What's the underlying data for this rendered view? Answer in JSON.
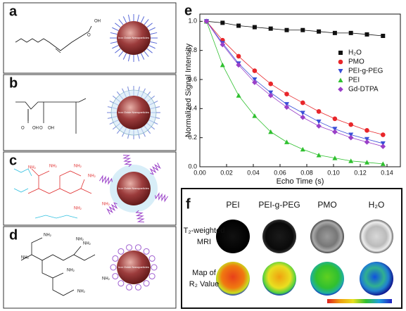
{
  "panels": {
    "a": {
      "label": "a",
      "particle": "Iron Oxide Nanoparticles",
      "atoms": [
        "OH",
        "O"
      ]
    },
    "b": {
      "label": "b",
      "particle": "Iron Oxide Nanoparticles",
      "atoms": [
        "O",
        "OH",
        "O",
        "OH"
      ]
    },
    "c": {
      "label": "c",
      "particle": "Iron Oxide Nanoparticles",
      "atoms": [
        "NH₂",
        "NH₂",
        "NH₂",
        "NH₂",
        "NH₂",
        "NH₂"
      ]
    },
    "d": {
      "label": "d",
      "particle": "Iron Oxide Nanoparticles",
      "atoms": [
        "NH₂",
        "NH₂",
        "NH₂",
        "NH₂",
        "NH₂",
        "NH₂",
        "NH₂"
      ]
    }
  },
  "chart_data": {
    "type": "scatter",
    "label": "e",
    "xlabel": "Echo Time (s)",
    "ylabel": "Normalized Signal Intensity",
    "x": [
      0.005,
      0.017,
      0.029,
      0.041,
      0.053,
      0.065,
      0.077,
      0.089,
      0.101,
      0.113,
      0.125,
      0.137
    ],
    "series": [
      {
        "name": "H₂O",
        "color": "#111111",
        "marker": "square",
        "values": [
          1,
          0.99,
          0.97,
          0.96,
          0.95,
          0.94,
          0.94,
          0.93,
          0.92,
          0.92,
          0.91,
          0.9
        ]
      },
      {
        "name": "PMO",
        "color": "#e8262a",
        "marker": "circle",
        "values": [
          1,
          0.87,
          0.76,
          0.66,
          0.57,
          0.5,
          0.44,
          0.38,
          0.33,
          0.29,
          0.25,
          0.22
        ]
      },
      {
        "name": "PEI-g-PEG",
        "color": "#3a4fd8",
        "marker": "triangle-down",
        "values": [
          1,
          0.85,
          0.71,
          0.6,
          0.51,
          0.43,
          0.37,
          0.31,
          0.26,
          0.22,
          0.19,
          0.16
        ]
      },
      {
        "name": "PEI",
        "color": "#2fc02f",
        "marker": "triangle-up",
        "values": [
          1,
          0.7,
          0.49,
          0.35,
          0.24,
          0.17,
          0.12,
          0.08,
          0.06,
          0.04,
          0.03,
          0.02
        ]
      },
      {
        "name": "Gd-DTPA",
        "color": "#9a3fc8",
        "marker": "diamond",
        "values": [
          1,
          0.84,
          0.7,
          0.58,
          0.49,
          0.41,
          0.34,
          0.28,
          0.24,
          0.2,
          0.17,
          0.14
        ]
      }
    ],
    "xlim": [
      0,
      0.15
    ],
    "ylim": [
      0,
      1.05
    ],
    "xticks": [
      {
        "value": 0,
        "label": "0.00"
      },
      0.02,
      0.04,
      0.06,
      0.08,
      {
        "value": 0.1,
        "label": "0.10"
      },
      0.12,
      0.14
    ],
    "yticks": [
      {
        "value": 0,
        "label": "0.0"
      },
      0.2,
      0.4,
      0.6,
      0.8,
      {
        "value": 1,
        "label": "1.0"
      }
    ]
  },
  "panel_f": {
    "label": "f",
    "columns": [
      "PEI",
      "PEI-g-PEG",
      "PMO",
      "H₂O"
    ],
    "rows": [
      [
        "T₂-weighted",
        "MRI"
      ],
      [
        "Map of",
        "R₂ Value"
      ]
    ]
  }
}
